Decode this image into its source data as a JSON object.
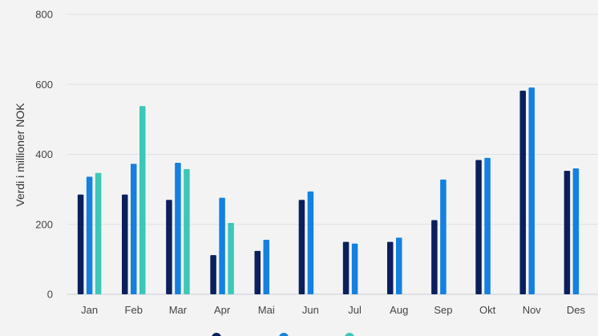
{
  "chart_data": {
    "type": "bar",
    "title": "",
    "xlabel": "",
    "ylabel": "Verdi i millioner NOK",
    "ylim": [
      0,
      800
    ],
    "yticks": [
      0,
      200,
      400,
      600,
      800
    ],
    "grid": true,
    "legend_position": "bottom",
    "categories": [
      "Jan",
      "Feb",
      "Mar",
      "Apr",
      "Mai",
      "Jun",
      "Jul",
      "Aug",
      "Sep",
      "Okt",
      "Nov",
      "Des"
    ],
    "series": [
      {
        "color": "#0b1f5c",
        "values": [
          285,
          285,
          270,
          112,
          124,
          270,
          150,
          150,
          212,
          384,
          582,
          353
        ]
      },
      {
        "color": "#1480e0",
        "values": [
          336,
          373,
          376,
          276,
          156,
          294,
          145,
          162,
          328,
          390,
          591,
          360
        ]
      },
      {
        "color": "#3cc7b8",
        "values": [
          347,
          538,
          358,
          204,
          null,
          null,
          null,
          null,
          null,
          null,
          null,
          null
        ]
      }
    ]
  }
}
